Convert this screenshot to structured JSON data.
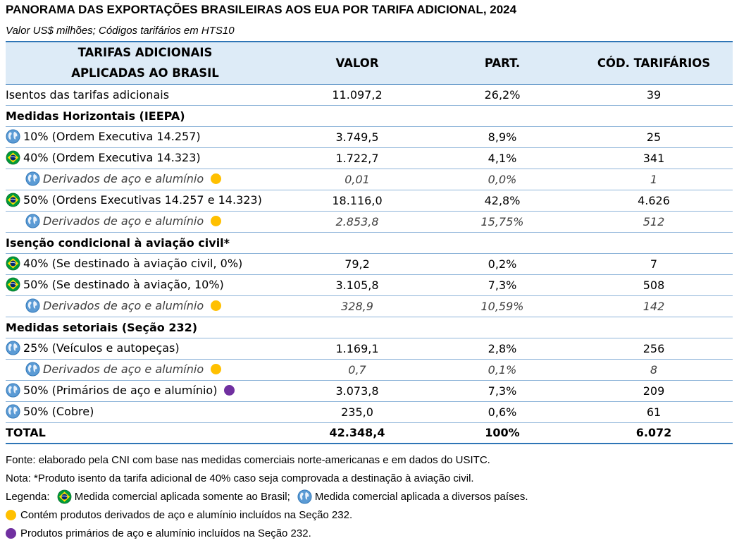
{
  "title": "PANORAMA DAS EXPORTAÇÕES BRASILEIRAS AOS EUA POR TARIFA ADICIONAL, 2024",
  "subtitle": "Valor US$ milhões; Códigos tarifários em HTS10",
  "table": {
    "headers": {
      "col1_line1": "TARIFAS ADICIONAIS",
      "col1_line2": "APLICADAS AO BRASIL",
      "col2": "VALOR",
      "col3": "PART.",
      "col4": "CÓD. TARIFÁRIOS"
    },
    "rows": [
      {
        "label": "Isentos das tarifas adicionais",
        "valor": "11.097,2",
        "part": "26,2%",
        "cod": "39"
      },
      {
        "label": "Medidas Horizontais (IEEPA)"
      },
      {
        "label": "10% (Ordem Executiva 14.257)",
        "valor": "3.749,5",
        "part": "8,9%",
        "cod": "25",
        "icon": "globe-icon"
      },
      {
        "label": "40% (Ordem Executiva 14.323)",
        "valor": "1.722,7",
        "part": "4,1%",
        "cod": "341",
        "icon": "brazil-flag-icon"
      },
      {
        "label": "Derivados de aço e alumínio",
        "valor": "0,01",
        "part": "0,0%",
        "cod": "1",
        "icon": "globe-icon",
        "dot": "yellow"
      },
      {
        "label": "50% (Ordens Executivas 14.257 e 14.323)",
        "valor": "18.116,0",
        "part": "42,8%",
        "cod": "4.626",
        "icon": "brazil-flag-icon"
      },
      {
        "label": "Derivados de aço e alumínio",
        "valor": "2.853,8",
        "part": "15,75%",
        "cod": "512",
        "icon": "globe-icon",
        "dot": "yellow"
      },
      {
        "label": "Isenção condicional à aviação civil*"
      },
      {
        "label": "40% (Se destinado à aviação civil, 0%)",
        "valor": "79,2",
        "part": "0,2%",
        "cod": "7",
        "icon": "brazil-flag-icon"
      },
      {
        "label": "50% (Se destinado à aviação, 10%)",
        "valor": "3.105,8",
        "part": "7,3%",
        "cod": "508",
        "icon": "brazil-flag-icon"
      },
      {
        "label": "Derivados de aço e alumínio",
        "valor": "328,9",
        "part": "10,59%",
        "cod": "142",
        "icon": "globe-icon",
        "dot": "yellow"
      },
      {
        "label": "Medidas setoriais (Seção 232)"
      },
      {
        "label": "25% (Veículos e autopeças)",
        "valor": "1.169,1",
        "part": "2,8%",
        "cod": "256",
        "icon": "globe-icon"
      },
      {
        "label": "Derivados de aço e alumínio",
        "valor": "0,7",
        "part": "0,1%",
        "cod": "8",
        "icon": "globe-icon",
        "dot": "yellow"
      },
      {
        "label": "50% (Primários de aço e alumínio)",
        "valor": "3.073,8",
        "part": "7,3%",
        "cod": "209",
        "icon": "globe-icon",
        "dot": "purple"
      },
      {
        "label": "50% (Cobre)",
        "valor": "235,0",
        "part": "0,6%",
        "cod": "61",
        "icon": "globe-icon"
      }
    ],
    "total": {
      "label": "TOTAL",
      "valor": "42.348,4",
      "part": "100%",
      "cod": "6.072"
    }
  },
  "notes": {
    "fonte": "Fonte: elaborado pela CNI com base nas medidas comerciais norte-americanas e em dados do USITC.",
    "nota": "Nota: *Produto isento da tarifa adicional de 40% caso seja comprovada a destinação à aviação civil.",
    "legenda_label": "Legenda:",
    "legenda_brasil": "Medida comercial aplicada somente ao Brasil;",
    "legenda_paises": "Medida comercial aplicada a diversos países.",
    "legenda_amarelo": "Contém produtos derivados de aço e alumínio incluídos na Seção 232.",
    "legenda_roxo": "Produtos primários de aço e alumínio incluídos na Seção 232."
  },
  "colors": {
    "header_bg": "#ddebf7",
    "rule": "#2e75b6",
    "yellow_dot": "#ffc000",
    "purple_dot": "#7030a0"
  }
}
